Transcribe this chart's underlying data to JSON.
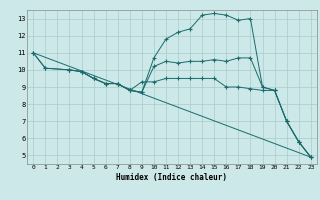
{
  "xlabel": "Humidex (Indice chaleur)",
  "bg_color": "#cce8e8",
  "grid_color": "#aacccc",
  "line_color": "#1a6b6b",
  "xlim": [
    -0.5,
    23.5
  ],
  "ylim": [
    4.5,
    13.5
  ],
  "yticks": [
    5,
    6,
    7,
    8,
    9,
    10,
    11,
    12,
    13
  ],
  "xticks": [
    0,
    1,
    2,
    3,
    4,
    5,
    6,
    7,
    8,
    9,
    10,
    11,
    12,
    13,
    14,
    15,
    16,
    17,
    18,
    19,
    20,
    21,
    22,
    23
  ],
  "line1_x": [
    0,
    1,
    3,
    4,
    5,
    6,
    7,
    8,
    9,
    10,
    11,
    12,
    13,
    14,
    15,
    16,
    17,
    18,
    19,
    20,
    21,
    22,
    23
  ],
  "line1_y": [
    11.0,
    10.1,
    10.0,
    9.9,
    9.5,
    9.2,
    9.2,
    8.8,
    8.7,
    10.7,
    11.8,
    12.2,
    12.4,
    13.2,
    13.3,
    13.2,
    12.9,
    13.0,
    9.0,
    8.8,
    7.0,
    5.8,
    4.9
  ],
  "line2_x": [
    0,
    1,
    3,
    4,
    5,
    6,
    7,
    8,
    9,
    10,
    11,
    12,
    13,
    14,
    15,
    16,
    17,
    18,
    19,
    20,
    21,
    22,
    23
  ],
  "line2_y": [
    11.0,
    10.1,
    10.0,
    9.9,
    9.5,
    9.2,
    9.2,
    8.8,
    8.7,
    10.2,
    10.5,
    10.4,
    10.5,
    10.5,
    10.6,
    10.5,
    10.7,
    10.7,
    9.0,
    8.8,
    7.0,
    5.8,
    4.9
  ],
  "line3_x": [
    3,
    4,
    5,
    6,
    7,
    8,
    9,
    10,
    11,
    12,
    13,
    14,
    15,
    16,
    17,
    18,
    19,
    20,
    21,
    22,
    23
  ],
  "line3_y": [
    10.0,
    9.9,
    9.5,
    9.2,
    9.2,
    8.8,
    9.3,
    9.3,
    9.5,
    9.5,
    9.5,
    9.5,
    9.5,
    9.0,
    9.0,
    8.9,
    8.8,
    8.8,
    7.0,
    5.8,
    4.9
  ],
  "line4_x": [
    0,
    23
  ],
  "line4_y": [
    11.0,
    4.9
  ]
}
